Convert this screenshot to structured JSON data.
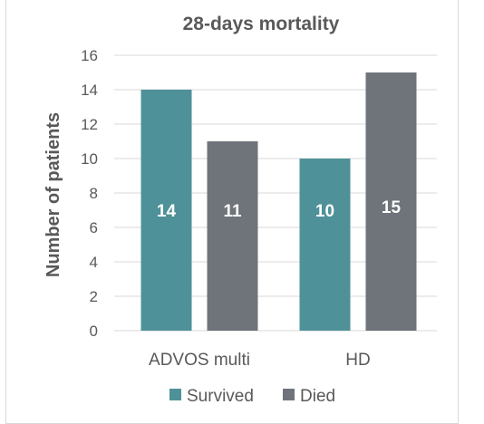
{
  "chart_data": {
    "type": "bar",
    "title": "28-days mortality",
    "xlabel": "",
    "ylabel": "Number of patients",
    "categories": [
      "ADVOS multi",
      "HD"
    ],
    "series": [
      {
        "name": "Survived",
        "values": [
          14,
          10
        ],
        "color": "#4f9198"
      },
      {
        "name": "Died",
        "values": [
          11,
          15
        ],
        "color": "#6e7479"
      }
    ],
    "ylim": [
      0,
      16
    ],
    "yticks": [
      "0",
      "2",
      "4",
      "6",
      "8",
      "10",
      "12",
      "14",
      "16"
    ],
    "grid": true,
    "legend_position": "bottom",
    "data_labels": [
      "14",
      "11",
      "10",
      "15"
    ]
  },
  "colors": {
    "title": "#595959",
    "axis_text": "#595959",
    "gridline": "#d9d9d9",
    "data_label": "#ffffff"
  }
}
